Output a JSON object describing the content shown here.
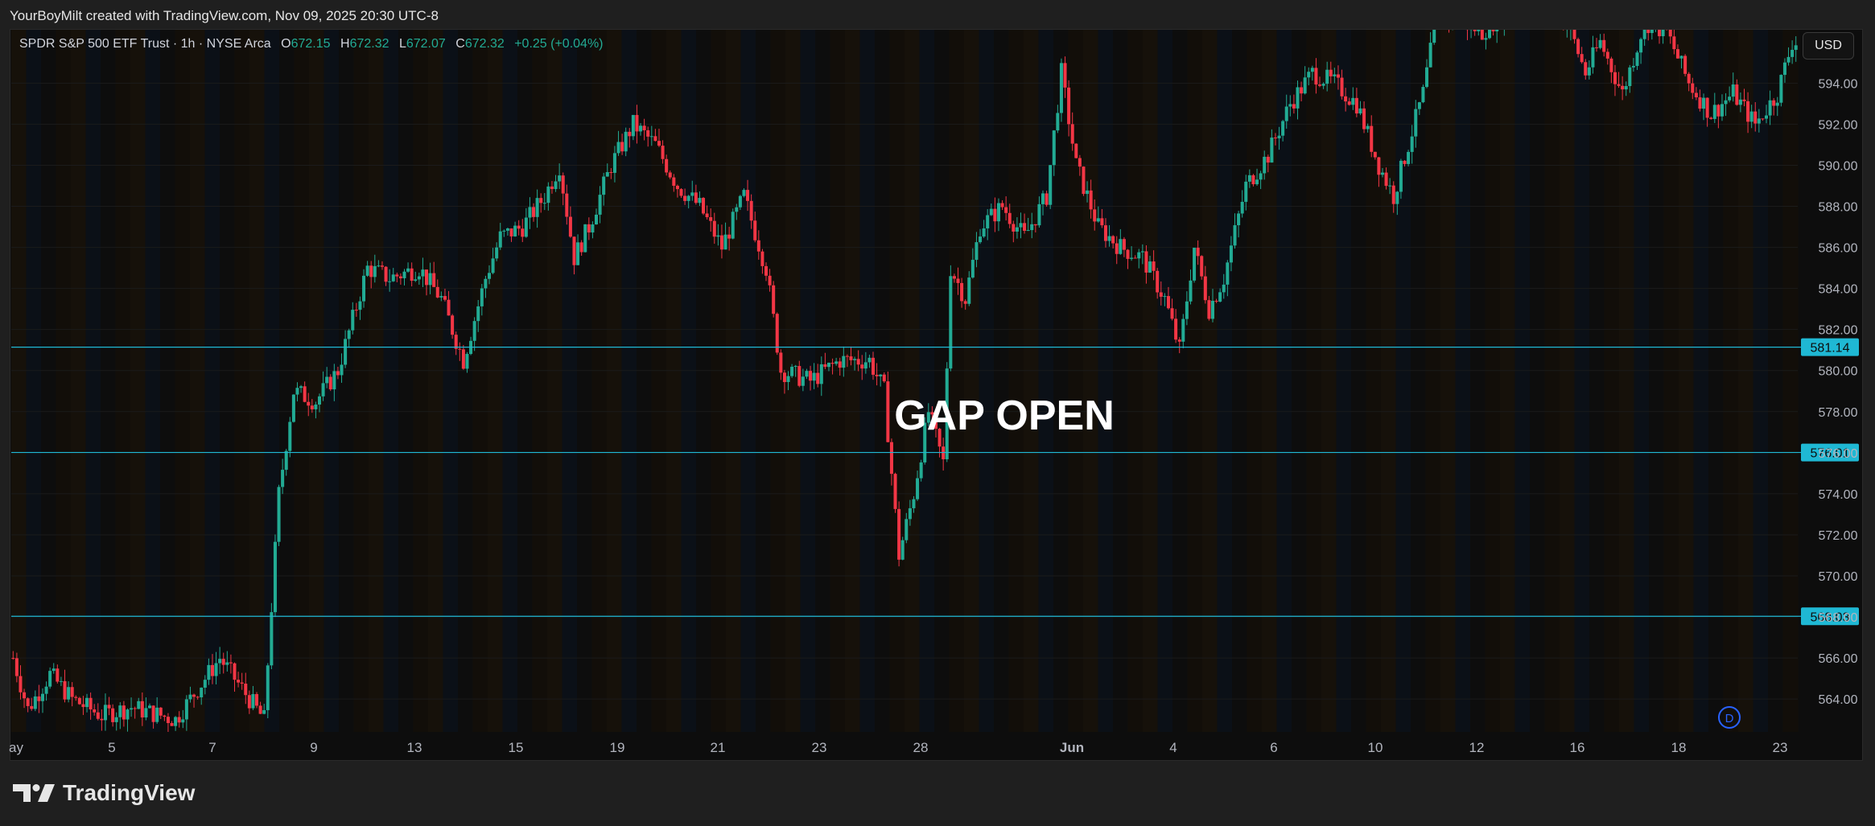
{
  "header": {
    "credit": "YourBoyMilt created with TradingView.com, Nov 09, 2025 20:30 UTC-8"
  },
  "legend": {
    "title": "SPDR S&P 500 ETF Trust · 1h · NYSE Arca",
    "o_label": "O",
    "o_value": "672.15",
    "h_label": "H",
    "h_value": "672.32",
    "l_label": "L",
    "l_value": "672.07",
    "c_label": "C",
    "c_value": "672.32",
    "change": "+0.25 (+0.04%)"
  },
  "currency_button": "USD",
  "footer": {
    "brand": "TradingView"
  },
  "colors": {
    "up": "#22ab94",
    "down": "#f23645",
    "level": "#1fb8d4",
    "annotation": "#ffffff"
  },
  "icons": {
    "brand_logo": "tradingview-logo-icon",
    "d_badge": "d-circle-icon"
  },
  "chart_data": {
    "type": "candlestick",
    "timeframe": "1h",
    "annotation": "GAP OPEN",
    "badge": "D",
    "ylim": [
      562.4,
      596.6
    ],
    "y_ticks": [
      564,
      566,
      568,
      570,
      572,
      574,
      576,
      578,
      580,
      582,
      584,
      586,
      588,
      590,
      592,
      594
    ],
    "y_tick_labels": [
      "564.00",
      "566.00",
      "568.00",
      "570.00",
      "572.00",
      "574.00",
      "576.00",
      "578.00",
      "580.00",
      "582.00",
      "584.00",
      "586.00",
      "588.00",
      "590.00",
      "592.00",
      "594.00"
    ],
    "x_tick_labels": [
      "ay",
      "5",
      "7",
      "9",
      "13",
      "15",
      "19",
      "21",
      "23",
      "28",
      "Jun",
      "4",
      "6",
      "10",
      "12",
      "16",
      "18",
      "23"
    ],
    "horizontal_levels": [
      {
        "value": 581.14,
        "label": "581.14"
      },
      {
        "value": 576.01,
        "label": "576.01"
      },
      {
        "value": 568.03,
        "label": "568.03"
      }
    ],
    "price_path_keypoints": [
      [
        0,
        566.0
      ],
      [
        2,
        563.5
      ],
      [
        5,
        565.2
      ],
      [
        8,
        564.0
      ],
      [
        12,
        563.2
      ],
      [
        16,
        563.6
      ],
      [
        22,
        563.0
      ],
      [
        28,
        566.0
      ],
      [
        31,
        564.5
      ],
      [
        34,
        563.0
      ],
      [
        36,
        574.0
      ],
      [
        38,
        579.0
      ],
      [
        41,
        578.5
      ],
      [
        44,
        580.0
      ],
      [
        48,
        585.0
      ],
      [
        51,
        584.5
      ],
      [
        55,
        585.0
      ],
      [
        58,
        583.5
      ],
      [
        61,
        580.5
      ],
      [
        64,
        584.5
      ],
      [
        66,
        586.5
      ],
      [
        69,
        587.0
      ],
      [
        72,
        588.5
      ],
      [
        74,
        590.0
      ],
      [
        76,
        585.5
      ],
      [
        78,
        587.0
      ],
      [
        81,
        590.0
      ],
      [
        84,
        592.0
      ],
      [
        87,
        591.0
      ],
      [
        90,
        589.0
      ],
      [
        93,
        588.0
      ],
      [
        96,
        586.0
      ],
      [
        99,
        588.5
      ],
      [
        102,
        585.0
      ],
      [
        104,
        580.0
      ],
      [
        108,
        579.5
      ],
      [
        112,
        580.5
      ],
      [
        116,
        580.5
      ],
      [
        118,
        579.0
      ],
      [
        120,
        571.0
      ],
      [
        122,
        574.0
      ],
      [
        124,
        578.0
      ],
      [
        126,
        575.5
      ],
      [
        127,
        585.0
      ],
      [
        129,
        583.5
      ],
      [
        131,
        587.0
      ],
      [
        134,
        588.0
      ],
      [
        137,
        586.5
      ],
      [
        140,
        588.5
      ],
      [
        142,
        594.5
      ],
      [
        144,
        590.0
      ],
      [
        147,
        587.0
      ],
      [
        150,
        586.0
      ],
      [
        153,
        585.5
      ],
      [
        156,
        583.5
      ],
      [
        158,
        581.0
      ],
      [
        160,
        586.0
      ],
      [
        162,
        583.0
      ],
      [
        164,
        584.5
      ],
      [
        167,
        589.0
      ],
      [
        170,
        590.5
      ],
      [
        173,
        593.0
      ],
      [
        176,
        594.5
      ],
      [
        179,
        594.0
      ],
      [
        182,
        593.0
      ],
      [
        185,
        590.0
      ],
      [
        187,
        588.5
      ],
      [
        189,
        591.0
      ],
      [
        191,
        593.5
      ],
      [
        193,
        597.5
      ],
      [
        196,
        597.0
      ],
      [
        199,
        596.5
      ],
      [
        202,
        597.5
      ],
      [
        205,
        598.5
      ],
      [
        208,
        598.0
      ],
      [
        211,
        596.5
      ],
      [
        213,
        594.5
      ],
      [
        215,
        596.0
      ],
      [
        218,
        593.5
      ],
      [
        221,
        597.0
      ],
      [
        224,
        596.5
      ],
      [
        227,
        594.0
      ],
      [
        230,
        592.5
      ],
      [
        233,
        593.5
      ],
      [
        236,
        592.0
      ],
      [
        239,
        593.5
      ],
      [
        241,
        596.0
      ]
    ]
  }
}
